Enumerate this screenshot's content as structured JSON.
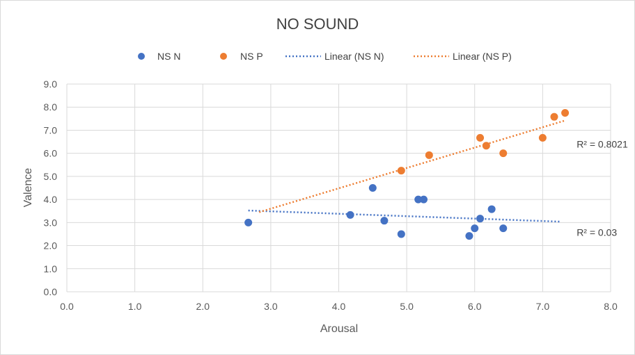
{
  "chart_data": {
    "type": "scatter",
    "title": "NO SOUND",
    "xlabel": "Arousal",
    "ylabel": "Valence",
    "xlim": [
      0,
      8
    ],
    "ylim": [
      0,
      9
    ],
    "xticks": [
      "0.0",
      "1.0",
      "2.0",
      "3.0",
      "4.0",
      "5.0",
      "6.0",
      "7.0",
      "8.0"
    ],
    "yticks": [
      "0.0",
      "1.0",
      "2.0",
      "3.0",
      "4.0",
      "5.0",
      "6.0",
      "7.0",
      "8.0",
      "9.0"
    ],
    "grid": true,
    "legend_position": "top",
    "series": [
      {
        "name": "NS N",
        "color": "#4472C4",
        "points": [
          [
            2.67,
            3.0
          ],
          [
            4.17,
            3.33
          ],
          [
            4.5,
            4.5
          ],
          [
            4.67,
            3.08
          ],
          [
            4.92,
            2.5
          ],
          [
            5.17,
            4.0
          ],
          [
            5.25,
            4.0
          ],
          [
            5.92,
            2.42
          ],
          [
            6.0,
            2.75
          ],
          [
            6.08,
            3.17
          ],
          [
            6.25,
            3.58
          ],
          [
            6.42,
            2.75
          ]
        ],
        "trend_name": "Linear (NS N)",
        "trend": {
          "x": [
            2.67,
            7.25
          ],
          "y": [
            3.52,
            3.04
          ]
        },
        "r2_label": "R² = 0.03",
        "r2_pos": [
          7.5,
          2.42
        ]
      },
      {
        "name": "NS P",
        "color": "#ED7D31",
        "points": [
          [
            4.92,
            5.25
          ],
          [
            5.33,
            5.92
          ],
          [
            6.08,
            6.67
          ],
          [
            6.17,
            6.33
          ],
          [
            6.42,
            6.0
          ],
          [
            7.0,
            6.67
          ],
          [
            7.17,
            7.58
          ],
          [
            7.33,
            7.75
          ]
        ],
        "trend_name": "Linear (NS P)",
        "trend": {
          "x": [
            2.83,
            7.33
          ],
          "y": [
            3.45,
            7.42
          ]
        },
        "r2_label": "R² = 0.8021",
        "r2_pos": [
          7.5,
          6.25
        ]
      }
    ]
  }
}
